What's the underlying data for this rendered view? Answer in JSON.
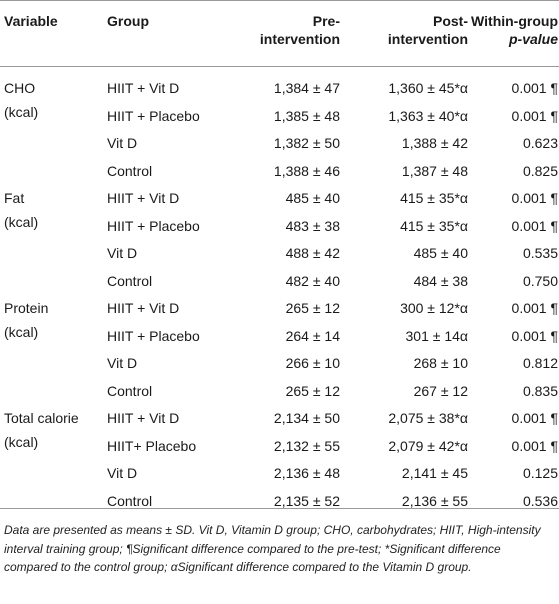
{
  "header": {
    "variable": "Variable",
    "group": "Group",
    "pre_line1": "Pre-",
    "pre_line2": "intervention",
    "post_line1": "Post-",
    "post_line2": "intervention",
    "p_line1": "Within-group",
    "p_line2": "p-value"
  },
  "blocks": [
    {
      "variable_line1": "CHO",
      "variable_line2": "(kcal)",
      "rows": [
        {
          "group": "HIIT + Vit D",
          "pre": "1,384 ± 47",
          "post": "1,360 ± 45*α",
          "p": "0.001 ¶"
        },
        {
          "group": "HIIT + Placebo",
          "pre": "1,385 ± 48",
          "post": "1,363 ± 40*α",
          "p": "0.001 ¶"
        },
        {
          "group": "Vit D",
          "pre": "1,382 ± 50",
          "post": "1,388 ± 42",
          "p": "0.623"
        },
        {
          "group": "Control",
          "pre": "1,388 ± 46",
          "post": "1,387 ± 48",
          "p": "0.825"
        }
      ]
    },
    {
      "variable_line1": "Fat",
      "variable_line2": "(kcal)",
      "rows": [
        {
          "group": "HIIT + Vit D",
          "pre": "485 ± 40",
          "post": "415 ± 35*α",
          "p": "0.001 ¶"
        },
        {
          "group": "HIIT + Placebo",
          "pre": "483 ± 38",
          "post": "415 ± 35*α",
          "p": "0.001 ¶"
        },
        {
          "group": "Vit D",
          "pre": "488 ± 42",
          "post": "485 ± 40",
          "p": "0.535"
        },
        {
          "group": "Control",
          "pre": "482 ± 40",
          "post": "484 ± 38",
          "p": "0.750"
        }
      ]
    },
    {
      "variable_line1": "Protein",
      "variable_line2": "(kcal)",
      "rows": [
        {
          "group": "HIIT + Vit D",
          "pre": "265 ± 12",
          "post": "300 ± 12*α",
          "p": "0.001 ¶"
        },
        {
          "group": "HIIT + Placebo",
          "pre": "264 ± 14",
          "post": "301 ± 14α",
          "p": "0.001 ¶"
        },
        {
          "group": "Vit D",
          "pre": "266 ± 10",
          "post": "268 ± 10",
          "p": "0.812"
        },
        {
          "group": "Control",
          "pre": "265 ± 12",
          "post": "267 ± 12",
          "p": "0.835"
        }
      ]
    },
    {
      "variable_line1": "Total calorie",
      "variable_line2": "(kcal)",
      "rows": [
        {
          "group": "HIIT + Vit D",
          "pre": "2,134 ± 50",
          "post": "2,075 ± 38*α",
          "p": "0.001 ¶"
        },
        {
          "group": "HIIT+ Placebo",
          "pre": "2,132 ± 55",
          "post": "2,079 ± 42*α",
          "p": "0.001 ¶"
        },
        {
          "group": "Vit D",
          "pre": "2,136 ± 48",
          "post": "2,141 ± 45",
          "p": "0.125"
        },
        {
          "group": "Control",
          "pre": "2,135 ± 52",
          "post": "2,136 ± 55",
          "p": "0.536"
        }
      ]
    }
  ],
  "footnote": "Data are presented as means ± SD. Vit D, Vitamin D group; CHO, carbohydrates; HIIT, High-intensity interval training group; ¶Significant difference compared to the pre-test; *Significant difference compared to the control group; αSignificant difference compared to the Vitamin D group."
}
